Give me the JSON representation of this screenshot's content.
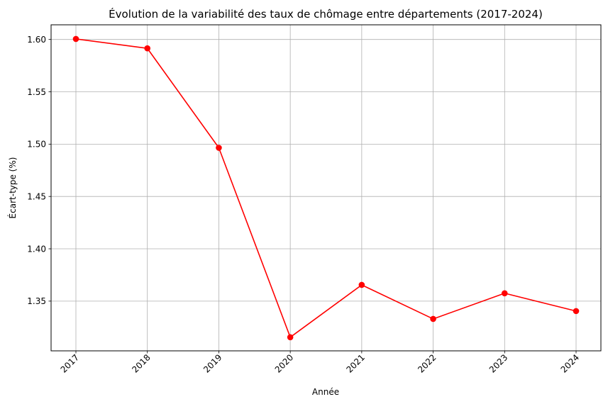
{
  "chart_data": {
    "type": "line",
    "title": "Évolution de la variabilité des taux de chômage entre départements (2017-2024)",
    "xlabel": "Année",
    "ylabel": "Écart-type (%)",
    "x": [
      "2017",
      "2018",
      "2019",
      "2020",
      "2021",
      "2022",
      "2023",
      "2024"
    ],
    "series": [
      {
        "values": [
          1.6005,
          1.5915,
          1.4965,
          1.3155,
          1.3655,
          1.333,
          1.3575,
          1.3405
        ],
        "color": "#ff0000",
        "marker": "circle"
      }
    ],
    "yticks": [
      "1.35",
      "1.40",
      "1.45",
      "1.50",
      "1.55",
      "1.60"
    ],
    "ylim": [
      1.3025,
      1.614
    ],
    "grid": true,
    "x_tick_rotation": 45
  }
}
